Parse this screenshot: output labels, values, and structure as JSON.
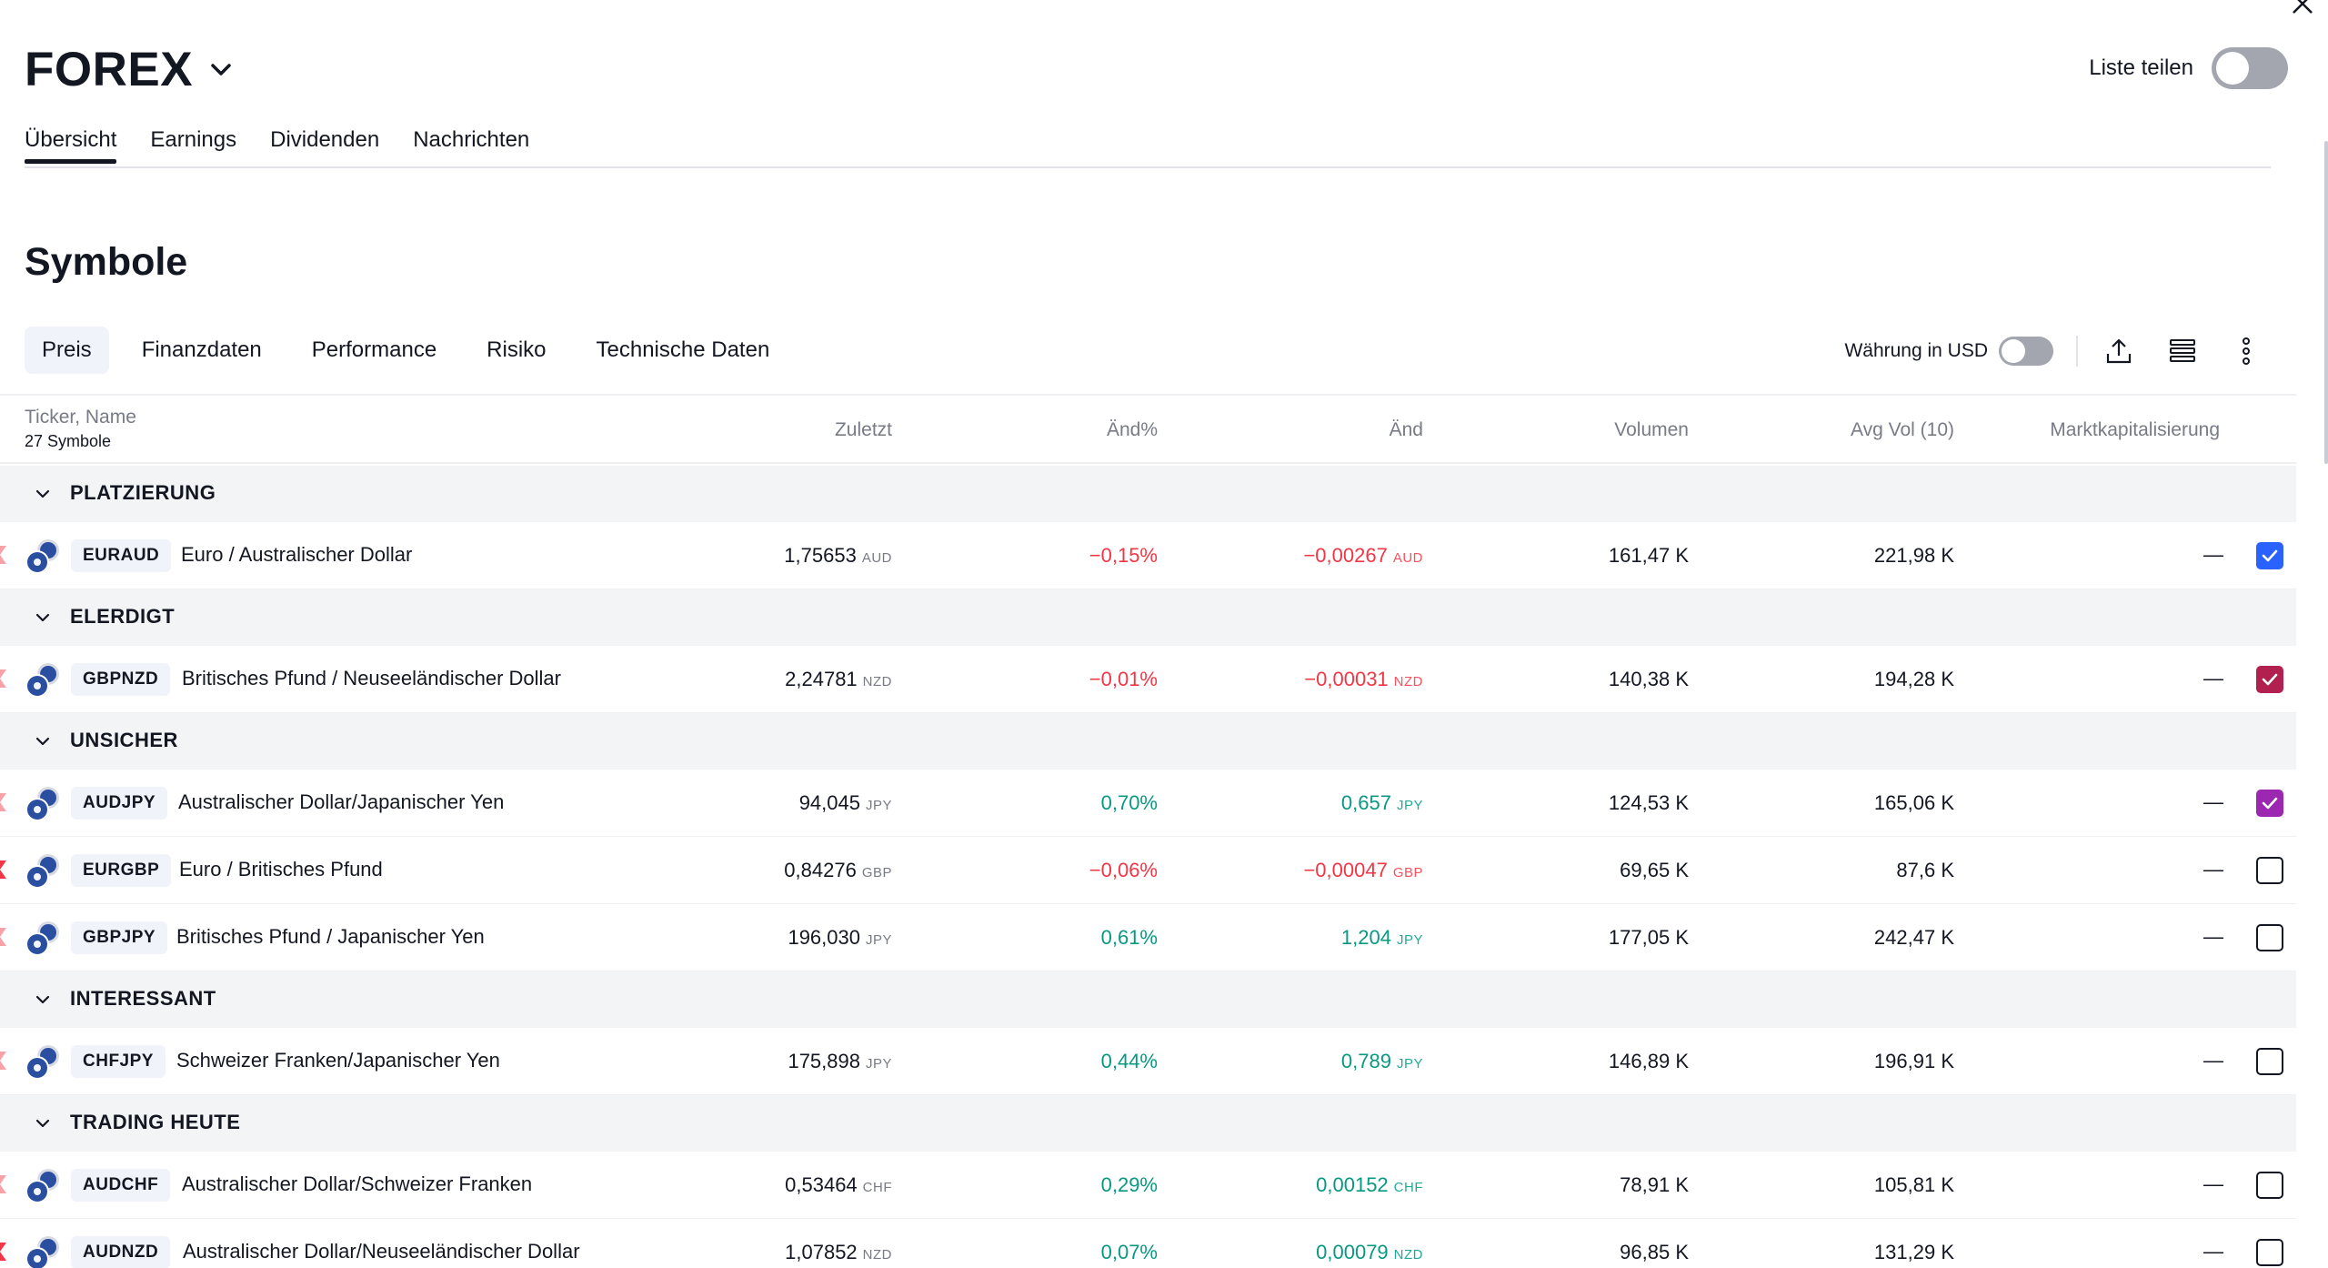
{
  "header": {
    "list_title": "FOREX",
    "share_label": "Liste teilen"
  },
  "top_tabs": [
    {
      "label": "Übersicht",
      "active": true
    },
    {
      "label": "Earnings"
    },
    {
      "label": "Dividenden"
    },
    {
      "label": "Nachrichten"
    }
  ],
  "section": {
    "title": "Symbole"
  },
  "sub_tabs": [
    {
      "label": "Preis",
      "active": true
    },
    {
      "label": "Finanzdaten"
    },
    {
      "label": "Performance"
    },
    {
      "label": "Risiko"
    },
    {
      "label": "Technische Daten"
    }
  ],
  "controls": {
    "currency_label": "Währung in USD"
  },
  "table": {
    "ticker_header": "Ticker, Name",
    "count": "27 Symbole",
    "columns": [
      "Zuletzt",
      "Änd%",
      "Änd",
      "Volumen",
      "Avg Vol (10)",
      "Marktkapitalisierung"
    ]
  },
  "groups": [
    {
      "name": "PLATZIERUNG",
      "rows": [
        {
          "ticker": "EURAUD",
          "name": "Euro / Australischer Dollar",
          "last": "1,75653",
          "last_cur": "AUD",
          "chg_pct": "−0,15%",
          "chg": "−0,00267",
          "chg_cur": "AUD",
          "volume": "161,47 K",
          "avg_vol": "221,98 K",
          "mcap": "—",
          "direction": "neg",
          "flag_color": "#f7a1a8",
          "checkbox": "blue"
        }
      ]
    },
    {
      "name": "ELERDIGT",
      "rows": [
        {
          "ticker": "GBPNZD",
          "name": "Britisches Pfund / Neuseeländischer Dollar",
          "last": "2,24781",
          "last_cur": "NZD",
          "chg_pct": "−0,01%",
          "chg": "−0,00031",
          "chg_cur": "NZD",
          "volume": "140,38 K",
          "avg_vol": "194,28 K",
          "mcap": "—",
          "direction": "neg",
          "flag_color": "#f7a1a8",
          "checkbox": "maroon"
        }
      ]
    },
    {
      "name": "UNSICHER",
      "rows": [
        {
          "ticker": "AUDJPY",
          "name": "Australischer Dollar/Japanischer Yen",
          "last": "94,045",
          "last_cur": "JPY",
          "chg_pct": "0,70%",
          "chg": "0,657",
          "chg_cur": "JPY",
          "volume": "124,53 K",
          "avg_vol": "165,06 K",
          "mcap": "—",
          "direction": "pos",
          "flag_color": "#f7a1a8",
          "checkbox": "purple"
        },
        {
          "ticker": "EURGBP",
          "name": "Euro / Britisches Pfund",
          "last": "0,84276",
          "last_cur": "GBP",
          "chg_pct": "−0,06%",
          "chg": "−0,00047",
          "chg_cur": "GBP",
          "volume": "69,65 K",
          "avg_vol": "87,6 K",
          "mcap": "—",
          "direction": "neg",
          "flag_color": "#f23645",
          "checkbox": "off"
        },
        {
          "ticker": "GBPJPY",
          "name": "Britisches Pfund / Japanischer Yen",
          "last": "196,030",
          "last_cur": "JPY",
          "chg_pct": "0,61%",
          "chg": "1,204",
          "chg_cur": "JPY",
          "volume": "177,05 K",
          "avg_vol": "242,47 K",
          "mcap": "—",
          "direction": "pos",
          "flag_color": "#f7a1a8",
          "checkbox": "off"
        }
      ]
    },
    {
      "name": "INTERESSANT",
      "rows": [
        {
          "ticker": "CHFJPY",
          "name": "Schweizer Franken/Japanischer Yen",
          "last": "175,898",
          "last_cur": "JPY",
          "chg_pct": "0,44%",
          "chg": "0,789",
          "chg_cur": "JPY",
          "volume": "146,89 K",
          "avg_vol": "196,91 K",
          "mcap": "—",
          "direction": "pos",
          "flag_color": "#f7a1a8",
          "checkbox": "off"
        }
      ]
    },
    {
      "name": "TRADING HEUTE",
      "rows": [
        {
          "ticker": "AUDCHF",
          "name": "Australischer Dollar/Schweizer Franken",
          "last": "0,53464",
          "last_cur": "CHF",
          "chg_pct": "0,29%",
          "chg": "0,00152",
          "chg_cur": "CHF",
          "volume": "78,91 K",
          "avg_vol": "105,81 K",
          "mcap": "—",
          "direction": "pos",
          "flag_color": "#f7a1a8",
          "checkbox": "off"
        },
        {
          "ticker": "AUDNZD",
          "name": "Australischer Dollar/Neuseeländischer Dollar",
          "last": "1,07852",
          "last_cur": "NZD",
          "chg_pct": "0,07%",
          "chg": "0,00079",
          "chg_cur": "NZD",
          "volume": "96,85 K",
          "avg_vol": "131,29 K",
          "mcap": "—",
          "direction": "pos",
          "flag_color": "#f23645",
          "checkbox": "off"
        }
      ]
    }
  ],
  "colors": {
    "negative": "#f23645",
    "positive": "#089981",
    "checkbox_blue": "#2962ff",
    "checkbox_maroon": "#b2204f",
    "checkbox_purple": "#9c27b0"
  },
  "icons": {
    "close": "close-icon",
    "title_dropdown": "chevron-down-icon",
    "export": "upload-icon",
    "view": "list-view-icon",
    "more": "more-vertical-icon"
  }
}
